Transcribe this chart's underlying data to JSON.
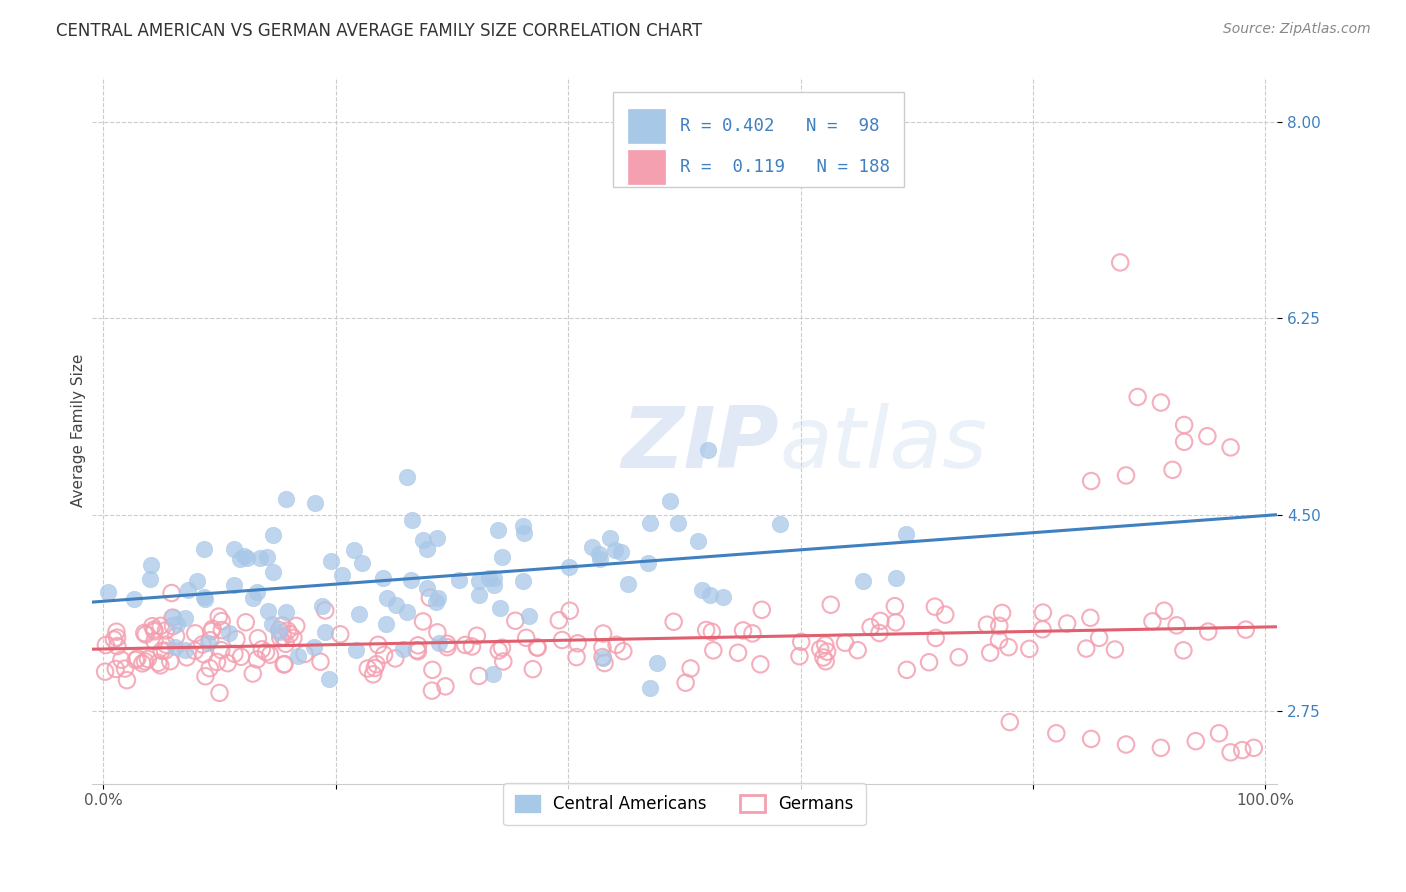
{
  "title": "CENTRAL AMERICAN VS GERMAN AVERAGE FAMILY SIZE CORRELATION CHART",
  "source": "Source: ZipAtlas.com",
  "ylabel": "Average Family Size",
  "yticks": [
    2.75,
    4.5,
    6.25,
    8.0
  ],
  "ymin": 2.1,
  "ymax": 8.4,
  "xmin": -0.01,
  "xmax": 1.01,
  "blue_R": "0.402",
  "blue_N": "98",
  "pink_R": "0.119",
  "pink_N": "188",
  "blue_color": "#a8c8e8",
  "pink_color": "#f4a0b0",
  "blue_line_color": "#4080c0",
  "pink_line_color": "#e06070",
  "blue_fill_color": "#a8c8e8",
  "legend_label_blue": "Central Americans",
  "legend_label_pink": "Germans",
  "watermark": "ZIPatlas",
  "title_fontsize": 12,
  "source_fontsize": 10,
  "axis_label_fontsize": 11,
  "tick_fontsize": 11,
  "blue_trend_x0": 0.0,
  "blue_trend_y0": 3.72,
  "blue_trend_x1": 1.0,
  "blue_trend_y1": 4.5,
  "pink_trend_x0": 0.0,
  "pink_trend_y0": 3.3,
  "pink_trend_x1": 1.0,
  "pink_trend_y1": 3.5
}
